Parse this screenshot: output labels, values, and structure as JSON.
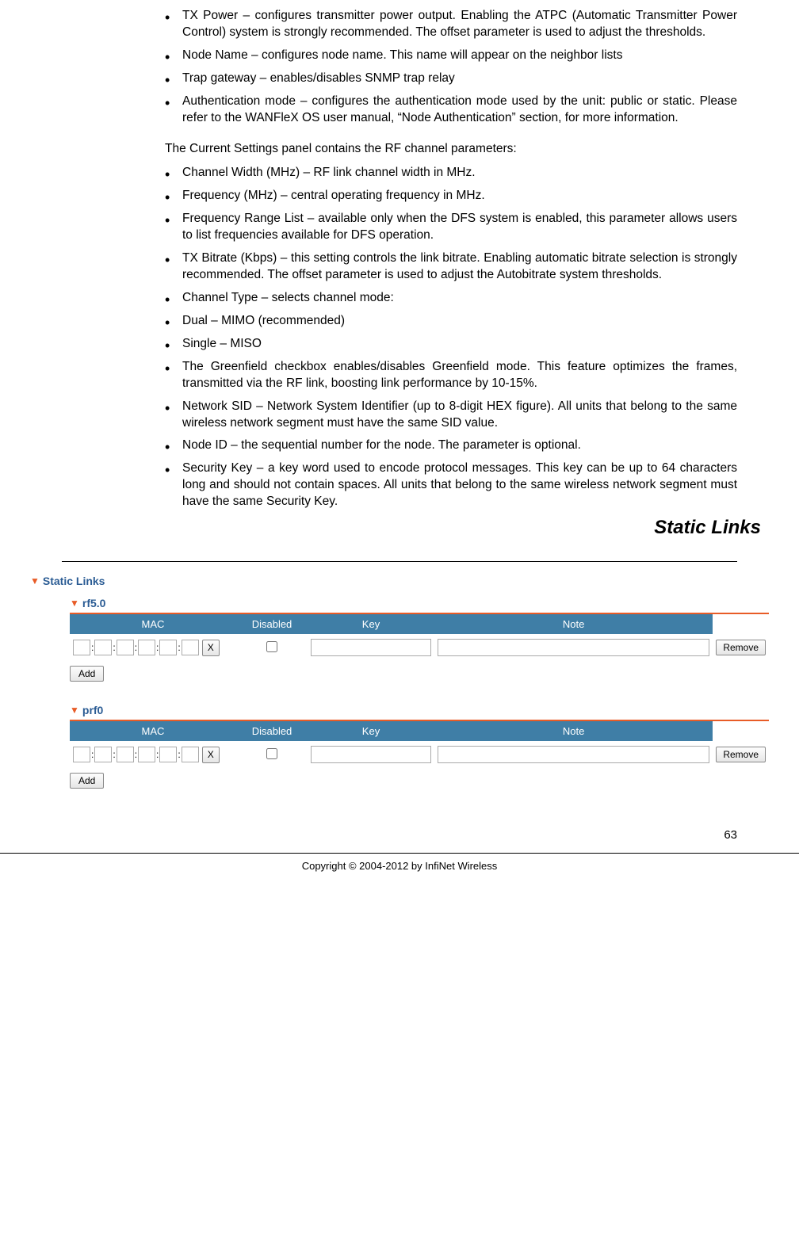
{
  "bullets_a": [
    "TX Power – configures transmitter power output. Enabling the ATPC (Automatic Transmitter Power Control) system is strongly recommended. The offset parameter is used to adjust the thresholds.",
    "Node Name – configures node name. This name will appear on the neighbor lists",
    "Trap gateway – enables/disables SNMP trap relay",
    "Authentication mode – configures the authentication mode used by the unit: public or static. Please refer to the WANFleX OS user manual, “Node Authentication” section, for more information."
  ],
  "intro_para": "The Current Settings panel contains the RF channel parameters:",
  "bullets_b": [
    "Channel Width (MHz) – RF link channel width in MHz.",
    "Frequency (MHz) – central operating frequency in MHz.",
    "Frequency Range List – available only when the DFS system is enabled, this parameter allows users to list frequencies available for DFS operation.",
    "TX Bitrate (Kbps) – this setting controls the link bitrate. Enabling automatic bitrate selection is strongly recommended. The offset parameter is used to adjust the Autobitrate system thresholds.",
    "Channel Type – selects channel mode:",
    "Dual – MIMO (recommended)",
    "Single – MISO",
    "The Greenfield checkbox enables/disables Greenfield mode. This feature optimizes the frames, transmitted via the RF link, boosting link performance by 10-15%.",
    "Network SID – Network System Identifier (up to 8-digit HEX figure). All units that belong to the same wireless network segment must have the same SID value.",
    "Node ID – the sequential number for the node. The parameter is optional.",
    "Security Key – a key word used to encode protocol messages. This key can be up to 64 characters long and should not contain spaces. All units that belong to the same wireless network segment must have the same Security Key."
  ],
  "section_heading": "Static Links",
  "panel": {
    "title": "Static Links",
    "interfaces": [
      {
        "name": "rf5.0"
      },
      {
        "name": "prf0"
      }
    ],
    "columns": {
      "mac": "MAC",
      "disabled": "Disabled",
      "key": "Key",
      "note": "Note"
    },
    "buttons": {
      "clear": "X",
      "remove": "Remove",
      "add": "Add"
    }
  },
  "page_number": "63",
  "copyright": "Copyright © 2004-2012 by InfiNet Wireless"
}
